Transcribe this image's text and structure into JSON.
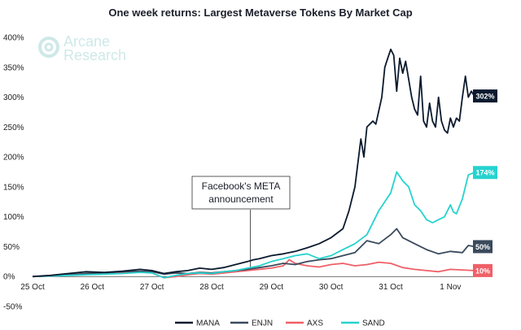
{
  "chart_data": {
    "type": "line",
    "title": "One week returns: Largest Metaverse Tokens By Market Cap",
    "xlabel": "",
    "ylabel": "",
    "x_ticks": [
      "25 Oct",
      "26 Oct",
      "27 Oct",
      "28 Oct",
      "29 Oct",
      "30 Oct",
      "31 Oct",
      "1 Nov"
    ],
    "y_ticks": [
      "-50%",
      "0%",
      "50%",
      "100%",
      "150%",
      "200%",
      "250%",
      "300%",
      "350%",
      "400%"
    ],
    "ylim": [
      -50,
      400
    ],
    "xlim": [
      25.0,
      32.5
    ],
    "grid": false,
    "legend_position": "bottom",
    "series": [
      {
        "name": "MANA",
        "color": "#0b1a2e",
        "end_label": "302%",
        "x": [
          25.0,
          25.3,
          25.6,
          25.9,
          26.2,
          26.5,
          26.8,
          27.0,
          27.2,
          27.4,
          27.6,
          27.8,
          28.0,
          28.2,
          28.4,
          28.6,
          28.7,
          28.8,
          29.0,
          29.2,
          29.4,
          29.6,
          29.8,
          30.0,
          30.2,
          30.3,
          30.4,
          30.5,
          30.55,
          30.6,
          30.7,
          30.75,
          30.85,
          30.9,
          30.95,
          31.0,
          31.05,
          31.1,
          31.15,
          31.2,
          31.25,
          31.3,
          31.35,
          31.4,
          31.45,
          31.5,
          31.55,
          31.6,
          31.65,
          31.7,
          31.75,
          31.8,
          31.85,
          31.9,
          31.95,
          32.0,
          32.05,
          32.1,
          32.15,
          32.2,
          32.25,
          32.3,
          32.35,
          32.4
        ],
        "y": [
          0,
          2,
          5,
          8,
          7,
          9,
          12,
          10,
          5,
          8,
          10,
          14,
          12,
          15,
          20,
          25,
          28,
          30,
          35,
          38,
          42,
          48,
          55,
          65,
          80,
          110,
          150,
          230,
          200,
          250,
          260,
          255,
          300,
          350,
          365,
          380,
          370,
          310,
          365,
          340,
          360,
          330,
          300,
          280,
          270,
          335,
          260,
          250,
          290,
          260,
          250,
          300,
          260,
          245,
          240,
          265,
          250,
          265,
          260,
          300,
          335,
          300,
          310,
          302
        ]
      },
      {
        "name": "ENJN",
        "color": "#3a4a5c",
        "end_label": "50%",
        "x": [
          25.0,
          25.3,
          25.6,
          25.9,
          26.2,
          26.5,
          26.8,
          27.0,
          27.2,
          27.4,
          27.6,
          27.8,
          28.0,
          28.2,
          28.4,
          28.6,
          28.8,
          29.0,
          29.2,
          29.4,
          29.6,
          29.8,
          30.0,
          30.2,
          30.4,
          30.6,
          30.8,
          31.0,
          31.1,
          31.2,
          31.4,
          31.6,
          31.8,
          32.0,
          32.2,
          32.3,
          32.4
        ],
        "y": [
          0,
          1,
          3,
          5,
          6,
          8,
          9,
          8,
          4,
          6,
          5,
          7,
          6,
          8,
          10,
          12,
          15,
          18,
          22,
          20,
          25,
          28,
          30,
          35,
          40,
          60,
          55,
          70,
          80,
          65,
          55,
          45,
          38,
          42,
          40,
          52,
          50
        ]
      },
      {
        "name": "AXS",
        "color": "#ef5f67",
        "end_label": "10%",
        "x": [
          25.0,
          25.3,
          25.6,
          25.9,
          26.2,
          26.5,
          26.8,
          27.0,
          27.2,
          27.4,
          27.6,
          27.8,
          28.0,
          28.2,
          28.4,
          28.6,
          28.8,
          29.0,
          29.2,
          29.3,
          29.4,
          29.5,
          29.6,
          29.8,
          30.0,
          30.2,
          30.4,
          30.6,
          30.8,
          31.0,
          31.2,
          31.4,
          31.6,
          31.8,
          32.0,
          32.2,
          32.4
        ],
        "y": [
          0,
          1,
          3,
          4,
          5,
          7,
          8,
          6,
          -2,
          0,
          3,
          5,
          4,
          6,
          8,
          10,
          12,
          14,
          18,
          28,
          22,
          20,
          18,
          16,
          20,
          22,
          18,
          20,
          24,
          22,
          15,
          12,
          10,
          8,
          12,
          11,
          10
        ]
      },
      {
        "name": "SAND",
        "color": "#26d3cf",
        "end_label": "174%",
        "x": [
          25.0,
          25.3,
          25.6,
          25.9,
          26.2,
          26.5,
          26.8,
          27.0,
          27.2,
          27.4,
          27.6,
          27.8,
          28.0,
          28.2,
          28.4,
          28.6,
          28.8,
          29.0,
          29.2,
          29.4,
          29.6,
          29.8,
          30.0,
          30.2,
          30.4,
          30.6,
          30.8,
          31.0,
          31.1,
          31.2,
          31.3,
          31.4,
          31.5,
          31.6,
          31.7,
          31.8,
          31.9,
          32.0,
          32.05,
          32.1,
          32.2,
          32.3,
          32.4
        ],
        "y": [
          0,
          1,
          2,
          3,
          4,
          5,
          7,
          6,
          -2,
          2,
          5,
          6,
          5,
          8,
          10,
          14,
          18,
          25,
          30,
          35,
          38,
          30,
          35,
          45,
          55,
          70,
          110,
          140,
          175,
          160,
          150,
          120,
          110,
          95,
          90,
          95,
          100,
          120,
          108,
          105,
          130,
          170,
          174
        ]
      }
    ],
    "annotation": {
      "text_line1": "Facebook's META",
      "text_line2": "announcement",
      "x": 28.65
    }
  },
  "logo": {
    "line1": "Arcane",
    "line2": "Research"
  }
}
